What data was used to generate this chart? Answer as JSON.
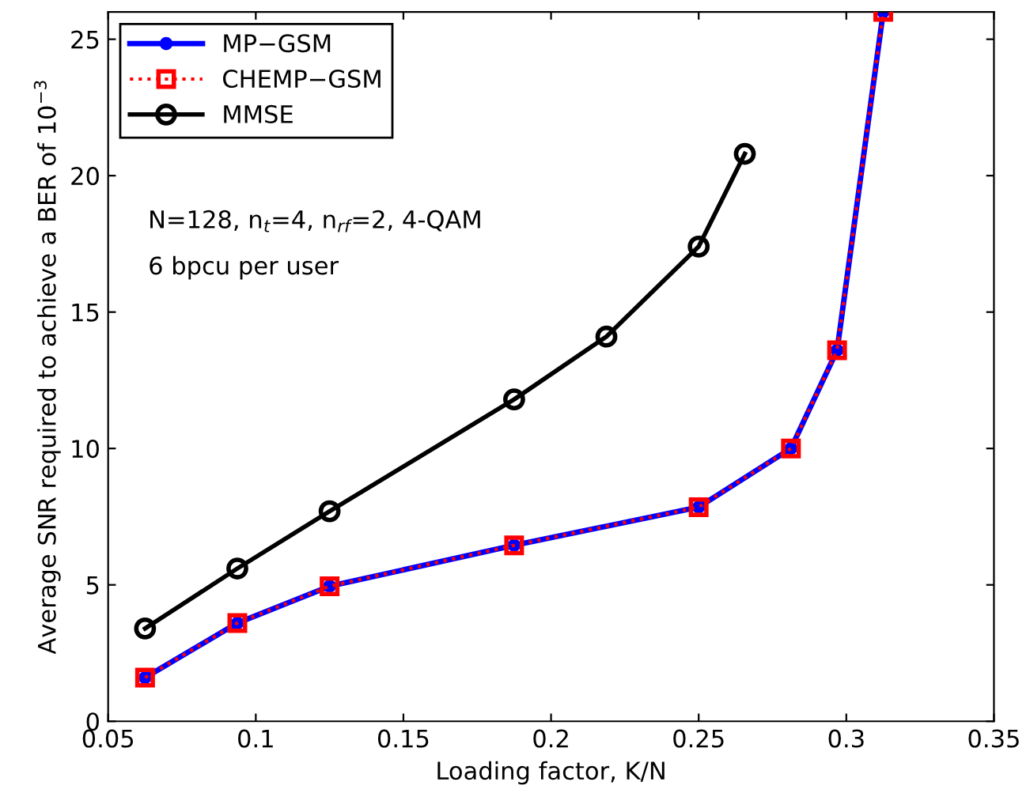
{
  "chart_data": {
    "type": "line",
    "xlabel": "Loading factor, K/N",
    "ylabel": "Average SNR required to achieve a BER of 10$^{−3}$",
    "xlim": [
      0.05,
      0.35
    ],
    "xticks": [
      0.05,
      0.1,
      0.15,
      0.2,
      0.25,
      0.3,
      0.35
    ],
    "ylim": [
      0,
      26
    ],
    "yticks": [
      0,
      5,
      10,
      15,
      20,
      25
    ],
    "grid": false,
    "legend": "top left",
    "annotations": [
      "N=128, n$_{t}$=4, n$_{rf}$=2, 4-QAM",
      "6 bpcu per user"
    ],
    "series": [
      {
        "name": "MP−GSM",
        "color": "#0000ff",
        "marker": "circle",
        "line_style": "solid",
        "x": [
          0.0625,
          0.09375,
          0.125,
          0.1875,
          0.25,
          0.28125,
          0.296875,
          0.3125
        ],
        "values": [
          1.6,
          3.6,
          4.95,
          6.45,
          7.85,
          10.0,
          13.6,
          26
        ]
      },
      {
        "name": "CHEMP−GSM",
        "color": "#ff0000",
        "marker": "square",
        "line_style": "dotted",
        "x": [
          0.0625,
          0.09375,
          0.125,
          0.1875,
          0.25,
          0.28125,
          0.296875,
          0.3125
        ],
        "values": [
          1.6,
          3.6,
          4.95,
          6.45,
          7.85,
          10.0,
          13.6,
          26
        ]
      },
      {
        "name": "MMSE",
        "color": "#000000",
        "marker": "circle",
        "line_style": "solid",
        "x": [
          0.0625,
          0.09375,
          0.125,
          0.1875,
          0.21875,
          0.25,
          0.265625
        ],
        "values": [
          3.4,
          5.6,
          7.7,
          11.8,
          14.1,
          17.4,
          20.8
        ]
      }
    ]
  }
}
